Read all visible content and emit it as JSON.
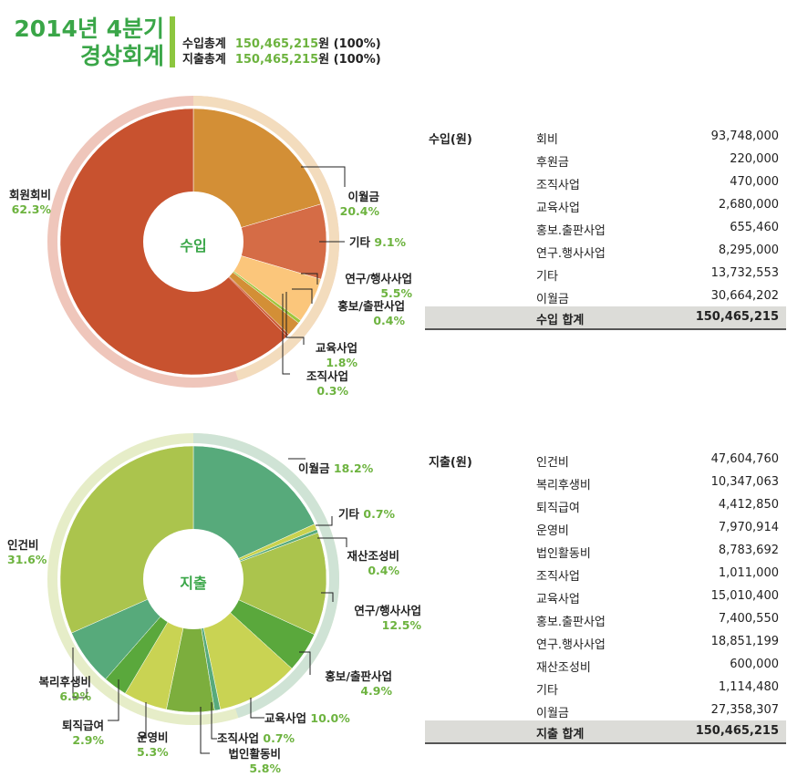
{
  "header": {
    "title_line1": "2014년 4분기",
    "title_line2": "경상회계",
    "income_total_label": "수입총계",
    "income_total_value": "150,465,215",
    "income_total_suffix": "원 (100%)",
    "expense_total_label": "지출총계",
    "expense_total_value": "150,465,215",
    "expense_total_suffix": "원 (100%)"
  },
  "chart_data": [
    {
      "type": "pie",
      "title": "수입",
      "center_label": "수입",
      "unit": "%",
      "slices": [
        {
          "name": "이월금",
          "value": 20.4,
          "color": "#d38f36"
        },
        {
          "name": "기타",
          "value": 9.1,
          "color": "#d56c46"
        },
        {
          "name": "연구/행사사업",
          "value": 5.5,
          "color": "#fbc67b"
        },
        {
          "name": "홍보/출판사업",
          "value": 0.4,
          "color": "#9fc63c"
        },
        {
          "name": "교육사업",
          "value": 1.8,
          "color": "#d38f36"
        },
        {
          "name": "조직사업",
          "value": 0.3,
          "color": "#c9532e"
        },
        {
          "name": "회원회비",
          "value": 62.3,
          "color": "#c8522f"
        }
      ],
      "ring_colors": [
        "#f3dcbd",
        "#efc6bb"
      ]
    },
    {
      "type": "pie",
      "title": "지출",
      "center_label": "지출",
      "unit": "%",
      "slices": [
        {
          "name": "이월금",
          "value": 18.2,
          "color": "#57aa7b"
        },
        {
          "name": "기타",
          "value": 0.7,
          "color": "#c9d24f"
        },
        {
          "name": "재산조성비",
          "value": 0.4,
          "color": "#57aa7b"
        },
        {
          "name": "연구/행사사업",
          "value": 12.5,
          "color": "#abc44d"
        },
        {
          "name": "홍보/출판사업",
          "value": 4.9,
          "color": "#5aa83c"
        },
        {
          "name": "교육사업",
          "value": 10.0,
          "color": "#c9d353"
        },
        {
          "name": "조직사업",
          "value": 0.7,
          "color": "#57aa7b"
        },
        {
          "name": "법인활동비",
          "value": 5.8,
          "color": "#7cae3d"
        },
        {
          "name": "운영비",
          "value": 5.3,
          "color": "#c9d353"
        },
        {
          "name": "퇴직급여",
          "value": 2.9,
          "color": "#5aa83c"
        },
        {
          "name": "복리후생비",
          "value": 6.9,
          "color": "#57aa7b"
        },
        {
          "name": "인건비",
          "value": 31.6,
          "color": "#abc44d"
        }
      ],
      "ring_colors": [
        "#cfe3d5",
        "#e6edc8"
      ]
    }
  ],
  "income_table": {
    "header": "수입(원)",
    "rows": [
      {
        "name": "회비",
        "value": "93,748,000"
      },
      {
        "name": "후원금",
        "value": "220,000"
      },
      {
        "name": "조직사업",
        "value": "470,000"
      },
      {
        "name": "교육사업",
        "value": "2,680,000"
      },
      {
        "name": "홍보.출판사업",
        "value": "655,460"
      },
      {
        "name": "연구.행사사업",
        "value": "8,295,000"
      },
      {
        "name": "기타",
        "value": "13,732,553"
      },
      {
        "name": "이월금",
        "value": "30,664,202"
      }
    ],
    "total_label": "수입 합계",
    "total_value": "150,465,215"
  },
  "expense_table": {
    "header": "지출(원)",
    "rows": [
      {
        "name": "인건비",
        "value": "47,604,760"
      },
      {
        "name": "복리후생비",
        "value": "10,347,063"
      },
      {
        "name": "퇴직급여",
        "value": "4,412,850"
      },
      {
        "name": "운영비",
        "value": "7,970,914"
      },
      {
        "name": "법인활동비",
        "value": "8,783,692"
      },
      {
        "name": "조직사업",
        "value": "1,011,000"
      },
      {
        "name": "교육사업",
        "value": "15,010,400"
      },
      {
        "name": "홍보.출판사업",
        "value": "7,400,550"
      },
      {
        "name": "연구.행사사업",
        "value": "18,851,199"
      },
      {
        "name": "재산조성비",
        "value": "600,000"
      },
      {
        "name": "기타",
        "value": "1,114,480"
      },
      {
        "name": "이월금",
        "value": "27,358,307"
      }
    ],
    "total_label": "지출 합계",
    "total_value": "150,465,215"
  }
}
